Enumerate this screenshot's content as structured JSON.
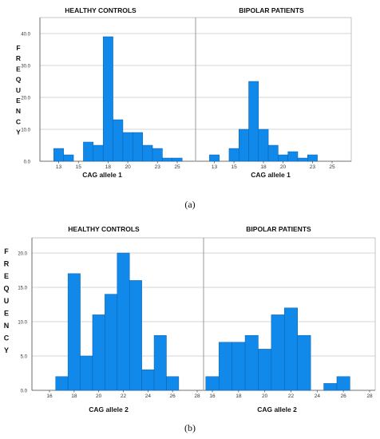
{
  "chart_data": [
    {
      "type": "bar",
      "caption": "(a)",
      "ylabel": "FREQUENCY",
      "panels": [
        {
          "title": "HEALTHY CONTROLS",
          "xlabel": "CAG  allele 1",
          "x_ticks": [
            "13",
            "15",
            "18",
            "20",
            "23",
            "25"
          ],
          "y_ticks": [
            "0.0",
            "10.0",
            "20.0",
            "30.0",
            "40.0"
          ],
          "ylim": [
            0,
            45
          ],
          "grid": true,
          "categories": [
            13,
            14,
            15,
            16,
            17,
            18,
            19,
            20,
            21,
            22,
            23,
            24,
            25
          ],
          "values": [
            4,
            2,
            0,
            6,
            5,
            39,
            13,
            9,
            9,
            5,
            4,
            1,
            1
          ]
        },
        {
          "title": "BIPOLAR PATIENTS",
          "xlabel": "CAG  allele 1",
          "x_ticks": [
            "13",
            "15",
            "18",
            "20",
            "23",
            "25"
          ],
          "y_ticks": [],
          "ylim": [
            0,
            45
          ],
          "grid": true,
          "categories": [
            13,
            14,
            15,
            16,
            17,
            18,
            19,
            20,
            21,
            22,
            23,
            24,
            25
          ],
          "values": [
            2,
            0,
            4,
            10,
            25,
            10,
            5,
            2,
            3,
            1,
            2,
            0,
            0
          ]
        }
      ]
    },
    {
      "type": "bar",
      "caption": "(b)",
      "ylabel": "FREQUENCY",
      "panels": [
        {
          "title": "HEALTHY CONTROLS",
          "xlabel": "CAG  allele 2",
          "x_ticks": [
            "16",
            "18",
            "20",
            "22",
            "24",
            "26",
            "28"
          ],
          "y_ticks": [
            "0.0",
            "5.0",
            "10.0",
            "15.0",
            "20.0"
          ],
          "ylim": [
            0,
            22.5
          ],
          "grid": true,
          "categories": [
            17,
            18,
            19,
            20,
            21,
            22,
            23,
            24,
            25,
            26
          ],
          "values": [
            2,
            17,
            5,
            11,
            14,
            20,
            16,
            3,
            8,
            2
          ]
        },
        {
          "title": "BIPOLAR PATIENTS",
          "xlabel": "CAG  allele 2",
          "x_ticks": [
            "16",
            "18",
            "20",
            "22",
            "24",
            "26",
            "28"
          ],
          "y_ticks": [],
          "ylim": [
            0,
            22.5
          ],
          "grid": true,
          "categories": [
            16,
            17,
            18,
            19,
            20,
            21,
            22,
            23,
            24,
            25,
            26
          ],
          "values": [
            2,
            7,
            7,
            8,
            6,
            11,
            12,
            8,
            0,
            1,
            2
          ]
        }
      ]
    }
  ]
}
